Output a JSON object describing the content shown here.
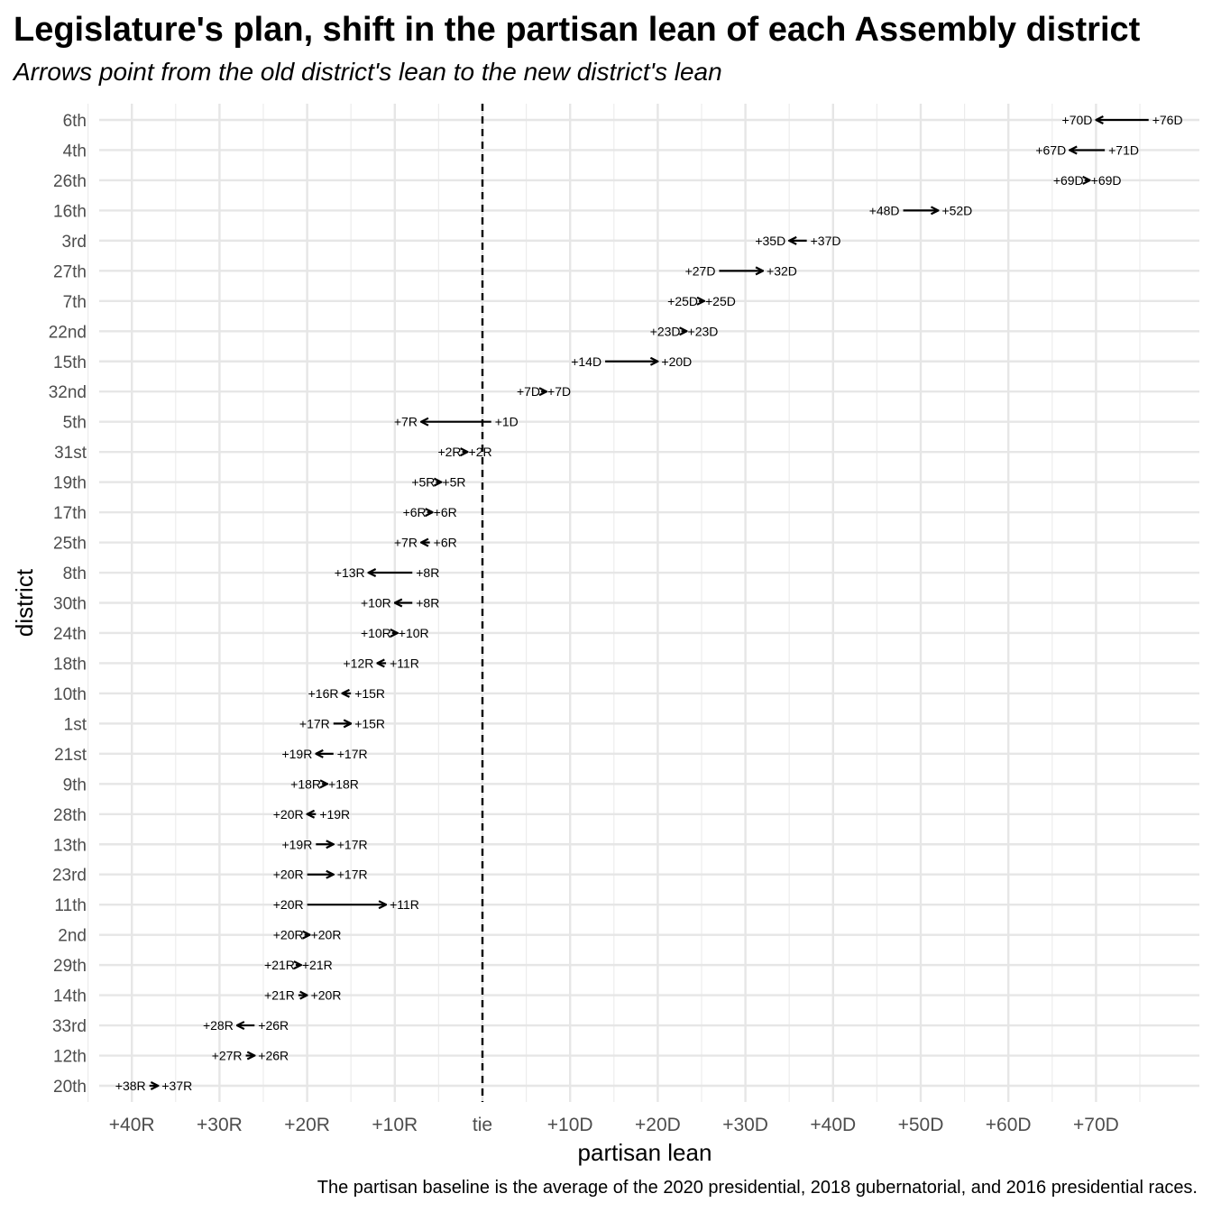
{
  "title": "Legislature's plan, shift in the partisan lean of each Assembly district",
  "subtitle": "Arrows point from the old district's lean to the new district's lean",
  "caption": "The partisan baseline is the average of the 2020 presidential, 2018 gubernatorial, and 2016 presidential races.",
  "chart_data": {
    "type": "arrow-dot",
    "xlabel": "partisan lean",
    "ylabel": "district",
    "xlim": [
      -42,
      82
    ],
    "x_ticks": [
      -40,
      -30,
      -20,
      -10,
      0,
      10,
      20,
      30,
      40,
      50,
      60,
      70
    ],
    "x_tick_labels": [
      "+40R",
      "+30R",
      "+20R",
      "+10R",
      "tie",
      "+10D",
      "+20D",
      "+30D",
      "+40D",
      "+50D",
      "+60D",
      "+70D"
    ],
    "reference_line": {
      "x": 0,
      "style": "dashed"
    },
    "grid": true,
    "districts": [
      {
        "name": "6th",
        "old": 76,
        "new": 70,
        "old_label": "+76D",
        "new_label": "+70D"
      },
      {
        "name": "4th",
        "old": 71,
        "new": 67,
        "old_label": "+71D",
        "new_label": "+67D"
      },
      {
        "name": "26th",
        "old": 69,
        "new": 69,
        "old_label": "+69D",
        "new_label": "+69D"
      },
      {
        "name": "16th",
        "old": 48,
        "new": 52,
        "old_label": "+48D",
        "new_label": "+52D"
      },
      {
        "name": "3rd",
        "old": 37,
        "new": 35,
        "old_label": "+37D",
        "new_label": "+35D"
      },
      {
        "name": "27th",
        "old": 27,
        "new": 32,
        "old_label": "+27D",
        "new_label": "+32D"
      },
      {
        "name": "7th",
        "old": 25,
        "new": 25,
        "old_label": "+25D",
        "new_label": "+25D"
      },
      {
        "name": "22nd",
        "old": 23,
        "new": 23,
        "old_label": "+23D",
        "new_label": "+23D"
      },
      {
        "name": "15th",
        "old": 14,
        "new": 20,
        "old_label": "+14D",
        "new_label": "+20D"
      },
      {
        "name": "32nd",
        "old": 7,
        "new": 7,
        "old_label": "+7D",
        "new_label": "+7D"
      },
      {
        "name": "5th",
        "old": 1,
        "new": -7,
        "old_label": "+1D",
        "new_label": "+7R"
      },
      {
        "name": "31st",
        "old": -2,
        "new": -2,
        "old_label": "+2R",
        "new_label": "+2R"
      },
      {
        "name": "19th",
        "old": -5,
        "new": -5,
        "old_label": "+5R",
        "new_label": "+5R"
      },
      {
        "name": "17th",
        "old": -6,
        "new": -6,
        "old_label": "+6R",
        "new_label": "+6R"
      },
      {
        "name": "25th",
        "old": -6,
        "new": -7,
        "old_label": "+6R",
        "new_label": "+7R"
      },
      {
        "name": "8th",
        "old": -8,
        "new": -13,
        "old_label": "+8R",
        "new_label": "+13R"
      },
      {
        "name": "30th",
        "old": -8,
        "new": -10,
        "old_label": "+8R",
        "new_label": "+10R"
      },
      {
        "name": "24th",
        "old": -10,
        "new": -10,
        "old_label": "+10R",
        "new_label": "+10R"
      },
      {
        "name": "18th",
        "old": -11,
        "new": -12,
        "old_label": "+11R",
        "new_label": "+12R"
      },
      {
        "name": "10th",
        "old": -15,
        "new": -16,
        "old_label": "+15R",
        "new_label": "+16R"
      },
      {
        "name": "1st",
        "old": -17,
        "new": -15,
        "old_label": "+17R",
        "new_label": "+15R"
      },
      {
        "name": "21st",
        "old": -17,
        "new": -19,
        "old_label": "+17R",
        "new_label": "+19R"
      },
      {
        "name": "9th",
        "old": -18,
        "new": -18,
        "old_label": "+18R",
        "new_label": "+18R"
      },
      {
        "name": "28th",
        "old": -19,
        "new": -20,
        "old_label": "+19R",
        "new_label": "+20R"
      },
      {
        "name": "13th",
        "old": -19,
        "new": -17,
        "old_label": "+19R",
        "new_label": "+17R"
      },
      {
        "name": "23rd",
        "old": -20,
        "new": -17,
        "old_label": "+20R",
        "new_label": "+17R"
      },
      {
        "name": "11th",
        "old": -20,
        "new": -11,
        "old_label": "+20R",
        "new_label": "+11R"
      },
      {
        "name": "2nd",
        "old": -20,
        "new": -20,
        "old_label": "+20R",
        "new_label": "+20R"
      },
      {
        "name": "29th",
        "old": -21,
        "new": -21,
        "old_label": "+21R",
        "new_label": "+21R"
      },
      {
        "name": "14th",
        "old": -21,
        "new": -20,
        "old_label": "+21R",
        "new_label": "+20R"
      },
      {
        "name": "33rd",
        "old": -26,
        "new": -28,
        "old_label": "+26R",
        "new_label": "+28R"
      },
      {
        "name": "12th",
        "old": -27,
        "new": -26,
        "old_label": "+27R",
        "new_label": "+26R"
      },
      {
        "name": "20th",
        "old": -38,
        "new": -37,
        "old_label": "+38R",
        "new_label": "+37R"
      }
    ]
  }
}
